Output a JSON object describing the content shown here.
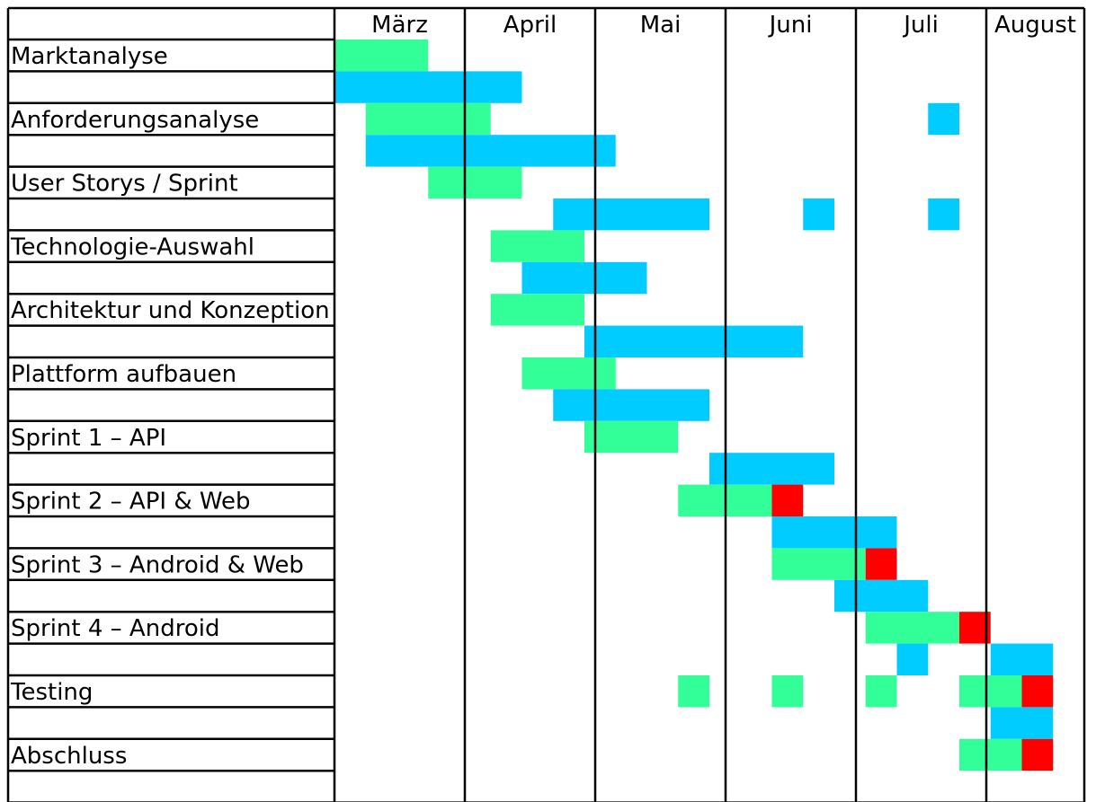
{
  "chart_data": {
    "type": "gantt",
    "title": "",
    "months": [
      "März",
      "April",
      "Mai",
      "Juni",
      "Juli",
      "August"
    ],
    "time_unit": "quarter-month",
    "colors": {
      "green": "#33ff99",
      "blue": "#00ccff",
      "red": "#ff0000"
    },
    "tasks": [
      {
        "label": "Marktanalyse",
        "bars": [
          {
            "row": 0,
            "color": "green",
            "start": 0,
            "end": 3
          },
          {
            "row": 1,
            "color": "blue",
            "start": 0,
            "end": 6
          }
        ]
      },
      {
        "label": "Anforderungsanalyse",
        "bars": [
          {
            "row": 0,
            "color": "green",
            "start": 1,
            "end": 5
          },
          {
            "row": 0,
            "color": "blue",
            "start": 19,
            "end": 20
          },
          {
            "row": 1,
            "color": "blue",
            "start": 1,
            "end": 9
          }
        ]
      },
      {
        "label": "User Storys / Sprint",
        "bars": [
          {
            "row": 0,
            "color": "green",
            "start": 3,
            "end": 6
          },
          {
            "row": 1,
            "color": "blue",
            "start": 7,
            "end": 12
          },
          {
            "row": 1,
            "color": "blue",
            "start": 15,
            "end": 16
          },
          {
            "row": 1,
            "color": "blue",
            "start": 19,
            "end": 20
          }
        ]
      },
      {
        "label": "Technologie-Auswahl",
        "bars": [
          {
            "row": 0,
            "color": "green",
            "start": 5,
            "end": 8
          },
          {
            "row": 1,
            "color": "blue",
            "start": 6,
            "end": 10
          }
        ]
      },
      {
        "label": "Architektur und Konzeption",
        "bars": [
          {
            "row": 0,
            "color": "green",
            "start": 5,
            "end": 8
          },
          {
            "row": 1,
            "color": "blue",
            "start": 8,
            "end": 15
          }
        ]
      },
      {
        "label": "Plattform aufbauen",
        "bars": [
          {
            "row": 0,
            "color": "green",
            "start": 6,
            "end": 9
          },
          {
            "row": 1,
            "color": "blue",
            "start": 7,
            "end": 12
          }
        ]
      },
      {
        "label": "Sprint 1 – API",
        "bars": [
          {
            "row": 0,
            "color": "green",
            "start": 8,
            "end": 11
          },
          {
            "row": 1,
            "color": "blue",
            "start": 12,
            "end": 16
          }
        ]
      },
      {
        "label": "Sprint 2 – API & Web",
        "bars": [
          {
            "row": 0,
            "color": "green",
            "start": 11,
            "end": 14
          },
          {
            "row": 0,
            "color": "red",
            "start": 14,
            "end": 15
          },
          {
            "row": 1,
            "color": "blue",
            "start": 14,
            "end": 18
          }
        ]
      },
      {
        "label": "Sprint 3 – Android & Web",
        "bars": [
          {
            "row": 0,
            "color": "green",
            "start": 14,
            "end": 17
          },
          {
            "row": 0,
            "color": "red",
            "start": 17,
            "end": 18
          },
          {
            "row": 1,
            "color": "blue",
            "start": 16,
            "end": 19
          }
        ]
      },
      {
        "label": "Sprint 4 – Android",
        "bars": [
          {
            "row": 0,
            "color": "green",
            "start": 17,
            "end": 20
          },
          {
            "row": 0,
            "color": "red",
            "start": 20,
            "end": 21
          },
          {
            "row": 1,
            "color": "blue",
            "start": 18,
            "end": 19
          },
          {
            "row": 1,
            "color": "blue",
            "start": 21,
            "end": 23
          }
        ]
      },
      {
        "label": "Testing",
        "bars": [
          {
            "row": 0,
            "color": "green",
            "start": 11,
            "end": 12
          },
          {
            "row": 0,
            "color": "green",
            "start": 14,
            "end": 15
          },
          {
            "row": 0,
            "color": "green",
            "start": 17,
            "end": 18
          },
          {
            "row": 0,
            "color": "green",
            "start": 20,
            "end": 22
          },
          {
            "row": 0,
            "color": "red",
            "start": 22,
            "end": 23
          },
          {
            "row": 1,
            "color": "blue",
            "start": 21,
            "end": 23
          }
        ]
      },
      {
        "label": "Abschluss",
        "bars": [
          {
            "row": 0,
            "color": "green",
            "start": 20,
            "end": 22
          },
          {
            "row": 0,
            "color": "red",
            "start": 22,
            "end": 23
          }
        ]
      }
    ]
  }
}
